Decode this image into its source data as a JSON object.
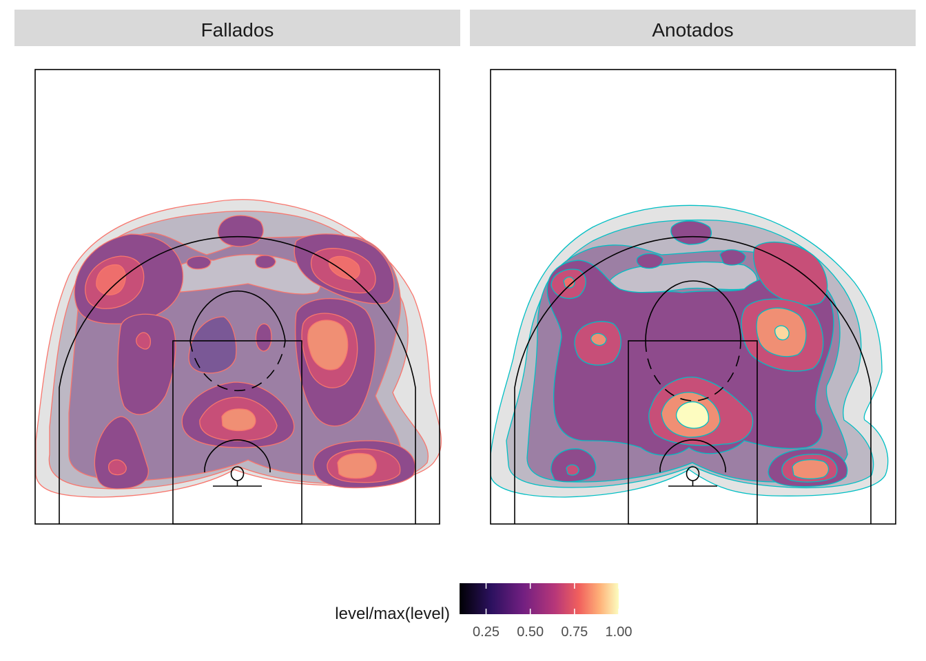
{
  "chart_data": {
    "type": "contour",
    "facets": [
      {
        "label": "Fallados",
        "outline_color": "#F8766D"
      },
      {
        "label": "Anotados",
        "outline_color": "#00BFC4"
      }
    ],
    "fill_aesthetic": "level/max(level)",
    "legend": {
      "title": "level/max(level)",
      "ticks": [
        0.25,
        0.5,
        0.75,
        1.0
      ],
      "tick_labels": [
        "0.25",
        "0.50",
        "0.75",
        "1.00"
      ],
      "range": [
        0.1,
        1.0
      ],
      "colormap": "magma",
      "placement": "bottom"
    },
    "background": "court diagram"
  }
}
